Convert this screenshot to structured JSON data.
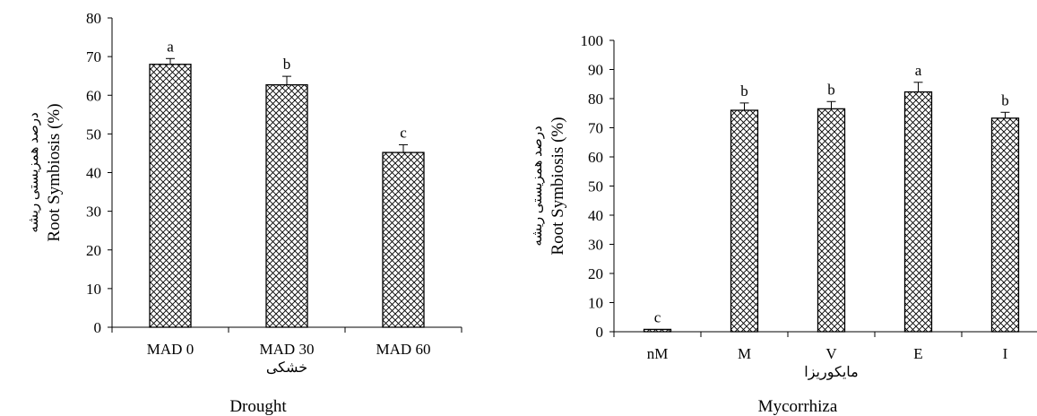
{
  "chart_data": [
    {
      "type": "bar",
      "categories": [
        "MAD 0",
        "MAD 30",
        "MAD 60"
      ],
      "category_sublabels": [
        "",
        "خشکی",
        ""
      ],
      "values": [
        68,
        62.7,
        45.2
      ],
      "errors": [
        1.5,
        2.2,
        2.0
      ],
      "letters": [
        "a",
        "b",
        "c"
      ],
      "xlabel": "Drought",
      "ylabel": "Root Symbiosis (%)",
      "ylabel_alt": "درصد همزیستی ریشه",
      "ylim": [
        0,
        80
      ],
      "yticks": [
        0,
        10,
        20,
        30,
        40,
        50,
        60,
        70,
        80
      ],
      "grid": false,
      "pattern": "crosshatch"
    },
    {
      "type": "bar",
      "categories": [
        "nM",
        "M",
        "V",
        "E",
        "I"
      ],
      "category_sublabels": [
        "",
        "",
        "مایکوریزا",
        "",
        ""
      ],
      "values": [
        0.8,
        76,
        76.5,
        82.3,
        73.3
      ],
      "errors": [
        0,
        2.5,
        2.5,
        3.3,
        2.0
      ],
      "letters": [
        "c",
        "b",
        "b",
        "a",
        "b"
      ],
      "xlabel": "Mycorrhiza",
      "ylabel": "Root Symbiosis (%)",
      "ylabel_alt": "درصد همزیستی ریشه",
      "ylim": [
        0,
        100
      ],
      "yticks": [
        0,
        10,
        20,
        30,
        40,
        50,
        60,
        70,
        80,
        90,
        100
      ],
      "grid": false,
      "pattern": "crosshatch"
    }
  ]
}
